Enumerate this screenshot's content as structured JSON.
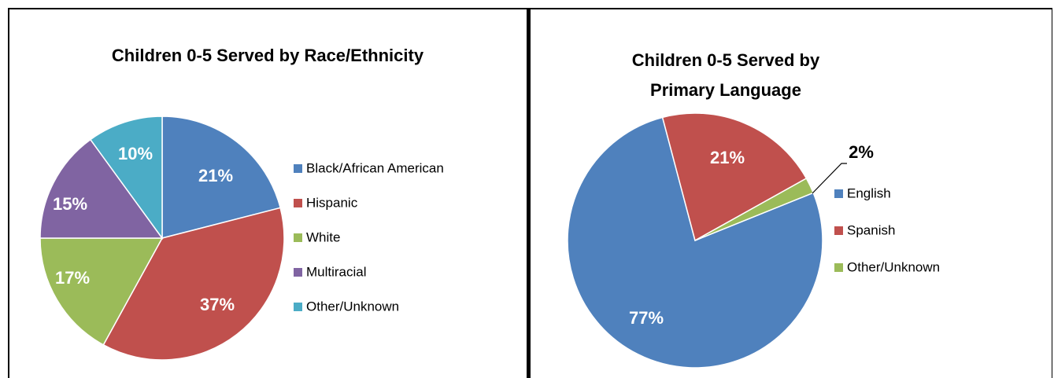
{
  "chart_data": [
    {
      "type": "pie",
      "title": "Children 0-5 Served by Race/Ethnicity",
      "categories": [
        "Black/African American",
        "Hispanic",
        "White",
        "Multiracial",
        "Other/Unknown"
      ],
      "values": [
        21,
        37,
        17,
        15,
        10
      ],
      "labels": [
        "21%",
        "37%",
        "17%",
        "15%",
        "10%"
      ],
      "colors": [
        "#4F81BD",
        "#C0504D",
        "#9BBB59",
        "#8064A2",
        "#4BACC6"
      ],
      "legend_position": "right"
    },
    {
      "type": "pie",
      "title_lines": [
        "Children 0-5 Served by",
        "Primary Language"
      ],
      "categories": [
        "English",
        "Spanish",
        "Other/Unknown"
      ],
      "values": [
        77,
        21,
        2
      ],
      "labels": [
        "77%",
        "21%",
        "2%"
      ],
      "colors": [
        "#4F81BD",
        "#C0504D",
        "#9BBB59"
      ],
      "legend_position": "right"
    }
  ]
}
